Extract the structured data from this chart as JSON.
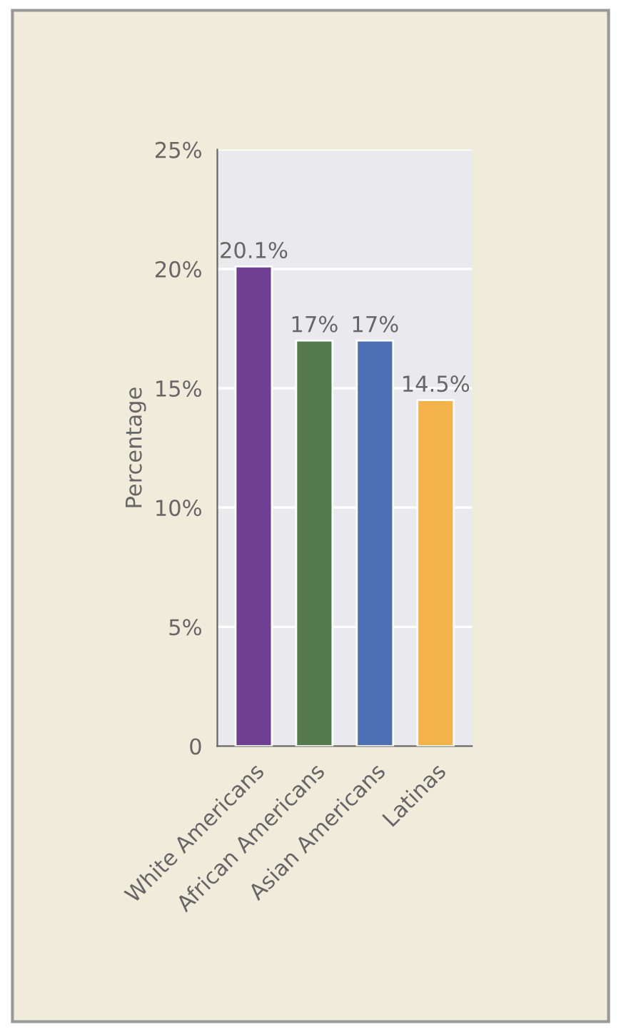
{
  "chart_data": {
    "type": "bar",
    "ylabel": "Percentage",
    "categories": [
      "White Americans",
      "African Americans",
      "Asian Americans",
      "Latinas"
    ],
    "values": [
      20.1,
      17,
      17,
      14.5
    ],
    "colors": [
      "#6e3f92",
      "#557a4e",
      "#4d6eb3",
      "#f4b34a"
    ],
    "value_labels": [
      "20.1%",
      "17%",
      "17%",
      "14.5%"
    ],
    "ylim": [
      0,
      25
    ],
    "yticks": [
      0,
      {
        "value": 5,
        "label": "5%"
      },
      {
        "value": 10,
        "label": "10%"
      },
      {
        "value": 15,
        "label": "15%"
      },
      {
        "value": 20,
        "label": "20%"
      },
      {
        "value": 25,
        "label": "25%"
      }
    ],
    "grid": "y"
  }
}
